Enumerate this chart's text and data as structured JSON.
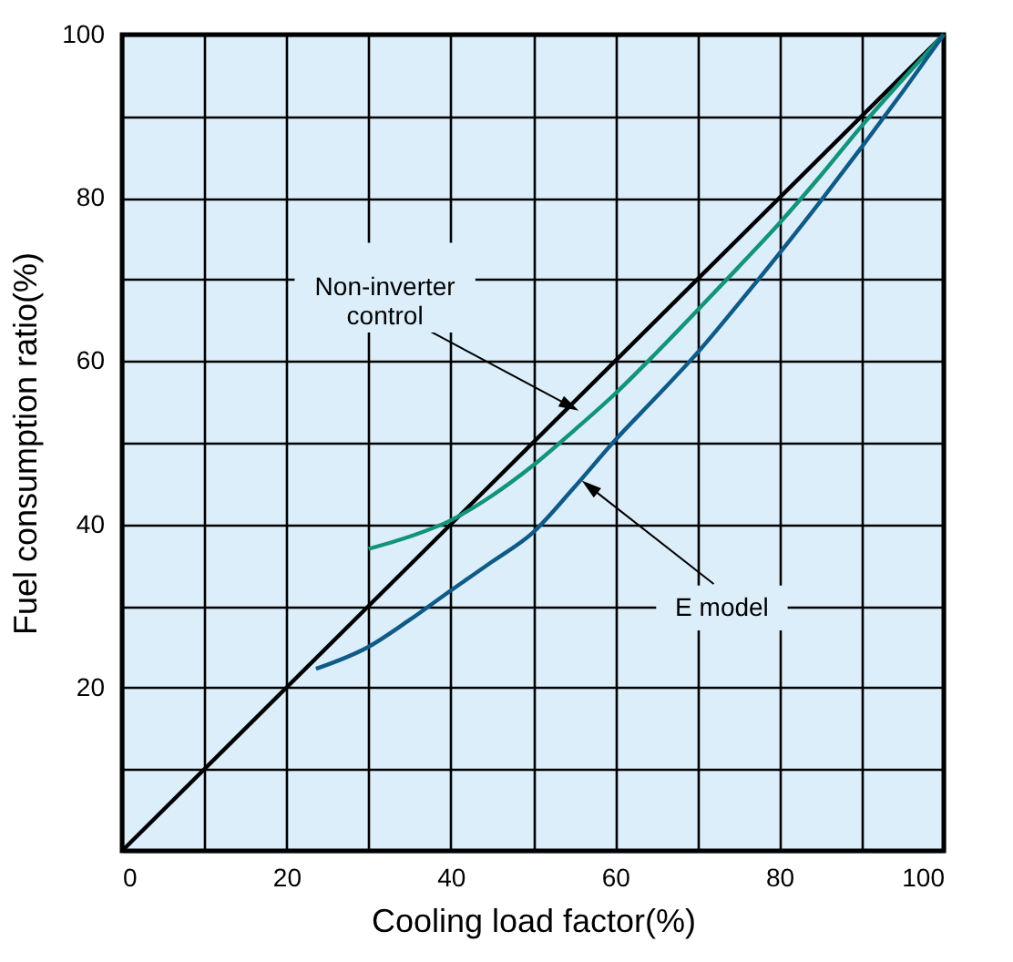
{
  "chart_data": {
    "type": "line",
    "xlabel": "Cooling load factor(%)",
    "ylabel": "Fuel consumption ratio(%)",
    "series": [
      {
        "color": "#000000",
        "x": [
          0,
          100
        ],
        "values": [
          0,
          100
        ]
      },
      {
        "color": "#12937a",
        "x": [
          30,
          35,
          40,
          45,
          50,
          55,
          60,
          65,
          70,
          75,
          80,
          85,
          90,
          95,
          100
        ],
        "values": [
          37,
          38.5,
          40.5,
          43.5,
          47.2,
          51.5,
          56,
          61,
          66.2,
          71.5,
          76.9,
          82.7,
          88.8,
          94.5,
          100
        ]
      },
      {
        "color": "#0f5a87",
        "x": [
          23.6,
          30,
          35,
          40,
          45,
          50,
          55,
          60,
          65,
          70,
          75,
          80,
          85,
          90,
          95,
          100
        ],
        "values": [
          22.3,
          25,
          28.3,
          31.9,
          35.4,
          39,
          44.5,
          50.3,
          55.6,
          61,
          67,
          73.2,
          79.6,
          86.2,
          93,
          100
        ]
      }
    ],
    "xlim": [
      0,
      100
    ],
    "ylim": [
      0,
      100
    ],
    "xticks": [
      0,
      {
        "value": 10,
        "label": null
      },
      20,
      {
        "value": 30,
        "label": null
      },
      40,
      {
        "value": 50,
        "label": null
      },
      60,
      {
        "value": 70,
        "label": null
      },
      80,
      {
        "value": 90,
        "label": null
      },
      100
    ],
    "annotations": [
      {
        "text": "Non-inverter control",
        "x": 54.5,
        "y": 54.5
      },
      {
        "text": "E model",
        "x": 56.9,
        "y": 44.6
      }
    ],
    "yticks": [
      {
        "value": 0,
        "label": null
      },
      {
        "value": 10,
        "label": null
      },
      20,
      {
        "value": 30,
        "label": null
      },
      40,
      {
        "value": 50,
        "label": null
      },
      60,
      {
        "value": 70,
        "label": null
      },
      80,
      {
        "value": 90,
        "label": null
      },
      100
    ],
    "grid": true,
    "marker": "none",
    "line_style": "solid"
  }
}
